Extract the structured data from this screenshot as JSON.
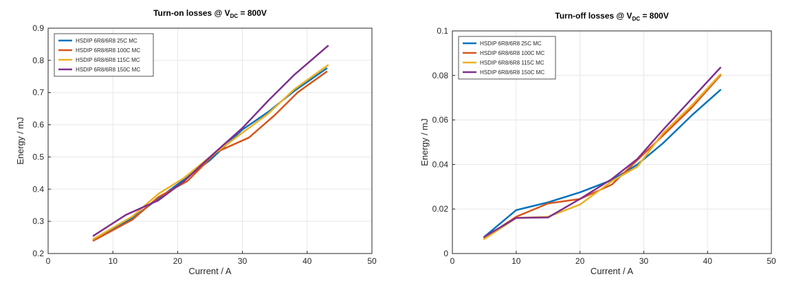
{
  "chart_data": [
    {
      "type": "line",
      "title": "Turn-on losses @ V",
      "title_sub": "DC",
      "title_suffix": " = 800V",
      "xlabel": "Current / A",
      "ylabel": "Energy / mJ",
      "xlim": [
        0,
        50
      ],
      "ylim": [
        0.2,
        0.9
      ],
      "xticks": [
        0,
        10,
        20,
        30,
        40,
        50
      ],
      "yticks": [
        0.2,
        0.3,
        0.4,
        0.5,
        0.6,
        0.7,
        0.8,
        0.9
      ],
      "ytick_labels": [
        "0.2",
        "0.3",
        "0.4",
        "0.5",
        "0.6",
        "0.7",
        "0.8",
        "0.9"
      ],
      "grid": true,
      "legend_position": "top-left",
      "series": [
        {
          "name": "HSDIP 6R8/6R8 25C MC",
          "color": "#0072BD",
          "x": [
            7,
            13,
            17,
            21,
            25,
            30,
            34,
            38,
            43
          ],
          "y": [
            0.245,
            0.31,
            0.37,
            0.43,
            0.49,
            0.585,
            0.64,
            0.705,
            0.775
          ]
        },
        {
          "name": "HSDIP 6R8/6R8 100C MC",
          "color": "#D95319",
          "x": [
            7,
            13,
            17,
            21.5,
            26,
            31,
            35,
            38.5,
            43
          ],
          "y": [
            0.24,
            0.305,
            0.375,
            0.425,
            0.515,
            0.56,
            0.63,
            0.7,
            0.765
          ]
        },
        {
          "name": "HSDIP 6R8/6R8 115C MC",
          "color": "#EDB120",
          "x": [
            7,
            13,
            17,
            21,
            25,
            30,
            34,
            38,
            43.2
          ],
          "y": [
            0.245,
            0.315,
            0.385,
            0.435,
            0.5,
            0.575,
            0.635,
            0.71,
            0.785
          ]
        },
        {
          "name": "HSDIP 6R8/6R8 150C MC",
          "color": "#7E2F8E",
          "x": [
            7,
            12,
            17,
            21,
            25,
            30,
            34,
            38,
            43.2
          ],
          "y": [
            0.255,
            0.32,
            0.365,
            0.425,
            0.5,
            0.59,
            0.675,
            0.755,
            0.845
          ]
        }
      ]
    },
    {
      "type": "line",
      "title": "Turn-off losses @ V",
      "title_sub": "DC",
      "title_suffix": " = 800V",
      "xlabel": "Current / A",
      "ylabel": "Energy / mJ",
      "xlim": [
        0,
        50
      ],
      "ylim": [
        0,
        0.1
      ],
      "xticks": [
        0,
        10,
        20,
        30,
        40,
        50
      ],
      "yticks": [
        0,
        0.02,
        0.04,
        0.06,
        0.08,
        0.1
      ],
      "ytick_labels": [
        "0",
        "0.02",
        "0.04",
        "0.06",
        "0.08",
        "0.1"
      ],
      "grid": true,
      "legend_position": "top-left",
      "series": [
        {
          "name": "HSDIP 6R8/6R8 25C MC",
          "color": "#0072BD",
          "x": [
            5,
            10,
            15,
            20,
            25,
            29,
            33,
            37.5,
            42
          ],
          "y": [
            0.0075,
            0.0195,
            0.023,
            0.0275,
            0.033,
            0.04,
            0.0495,
            0.062,
            0.0735
          ]
        },
        {
          "name": "HSDIP 6R8/6R8 100C MC",
          "color": "#D95319",
          "x": [
            5,
            10,
            15,
            20,
            25,
            29,
            33,
            37.5,
            42
          ],
          "y": [
            0.007,
            0.0165,
            0.0225,
            0.0245,
            0.031,
            0.042,
            0.053,
            0.0655,
            0.08
          ]
        },
        {
          "name": "HSDIP 6R8/6R8 115C MC",
          "color": "#EDB120",
          "x": [
            5,
            10,
            15,
            20,
            25,
            29,
            33,
            37.5,
            42
          ],
          "y": [
            0.0065,
            0.016,
            0.0165,
            0.022,
            0.0325,
            0.039,
            0.054,
            0.0665,
            0.0805
          ]
        },
        {
          "name": "HSDIP 6R8/6R8 150C MC",
          "color": "#7E2F8E",
          "x": [
            5,
            10,
            15,
            20,
            25,
            29,
            33,
            37.5,
            42
          ],
          "y": [
            0.0075,
            0.016,
            0.0162,
            0.0245,
            0.0335,
            0.0425,
            0.0555,
            0.0695,
            0.0835
          ]
        }
      ]
    }
  ]
}
